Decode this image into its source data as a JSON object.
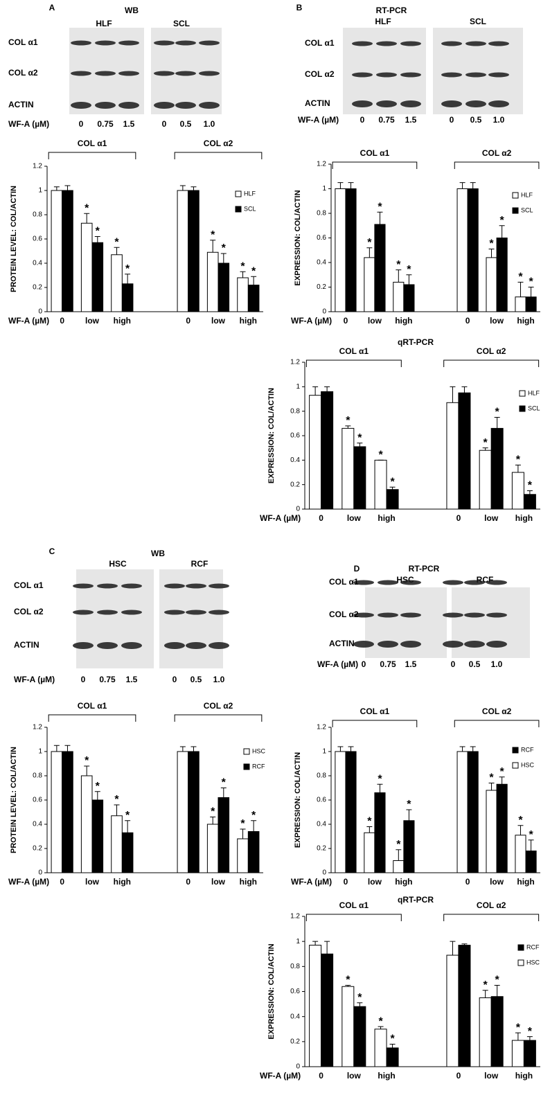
{
  "blots": [
    {
      "panel": "A",
      "method": "WB",
      "groups": [
        "HLF",
        "SCL"
      ],
      "rows": [
        "COL α1",
        "COL α2",
        "ACTIN"
      ],
      "dose_label": "WF-A (µM)",
      "lanes": [
        [
          "0",
          "0.75",
          "1.5"
        ],
        [
          "0",
          "0.5",
          "1.0"
        ]
      ]
    },
    {
      "panel": "B",
      "method": "RT-PCR",
      "groups": [
        "HLF",
        "SCL"
      ],
      "rows": [
        "COL α1",
        "COL α2",
        "ACTIN"
      ],
      "dose_label": "WF-A (µM)",
      "lanes": [
        [
          "0",
          "0.75",
          "1.5"
        ],
        [
          "0",
          "0.5",
          "1.0"
        ]
      ]
    },
    {
      "panel": "C",
      "method": "WB",
      "groups": [
        "HSC",
        "RCF"
      ],
      "rows": [
        "COL α1",
        "COL α2",
        "ACTIN"
      ],
      "dose_label": "WF-A (µM)",
      "lanes": [
        [
          "0",
          "0.75",
          "1.5"
        ],
        [
          "0",
          "0.5",
          "1.0"
        ]
      ]
    },
    {
      "panel": "D",
      "method": "RT-PCR",
      "groups": [
        "HSC",
        "RCF"
      ],
      "rows": [
        "COL α1",
        "COL α2",
        "ACTIN"
      ],
      "dose_label": "WF-A (µM)",
      "lanes": [
        [
          "0",
          "0.75",
          "1.5"
        ],
        [
          "0",
          "0.5",
          "1.0"
        ]
      ]
    }
  ],
  "chart_data": [
    {
      "type": "bar",
      "ylabel": "PROTEIN LEVEL: COL/ACTIN",
      "xlabel": "WF-A (µM)",
      "group_labels": [
        "COL α1",
        "COL α2"
      ],
      "categories": [
        "0",
        "low",
        "high",
        "0",
        "low",
        "high"
      ],
      "ylim": [
        0,
        1.2
      ],
      "yticks": [
        0,
        0.2,
        0.4,
        0.6,
        0.8,
        1,
        1.2
      ],
      "series": [
        {
          "name": "HLF",
          "color": "#ffffff",
          "values": [
            1.0,
            0.73,
            0.47,
            1.0,
            0.49,
            0.28
          ],
          "errors": [
            0.03,
            0.08,
            0.06,
            0.04,
            0.1,
            0.05
          ],
          "markers": [
            null,
            "*",
            "*",
            null,
            "*",
            "*"
          ]
        },
        {
          "name": "SCL",
          "color": "#000000",
          "values": [
            1.0,
            0.57,
            0.23,
            1.0,
            0.4,
            0.22
          ],
          "errors": [
            0.04,
            0.05,
            0.08,
            0.03,
            0.08,
            0.07
          ],
          "markers": [
            null,
            "*",
            "*",
            null,
            "*",
            "*"
          ]
        }
      ]
    },
    {
      "type": "bar",
      "ylabel": "EXPRESSION: COL/ACTIN",
      "xlabel": "WF-A (µM)",
      "group_labels": [
        "COL α1",
        "COL α2"
      ],
      "categories": [
        "0",
        "low",
        "high",
        "0",
        "low",
        "high"
      ],
      "ylim": [
        0,
        1.2
      ],
      "yticks": [
        0,
        0.2,
        0.4,
        0.6,
        0.8,
        1,
        1.2
      ],
      "series": [
        {
          "name": "HLF",
          "color": "#ffffff",
          "values": [
            1.0,
            0.44,
            0.24,
            1.0,
            0.44,
            0.12
          ],
          "errors": [
            0.05,
            0.08,
            0.1,
            0.05,
            0.07,
            0.12
          ],
          "markers": [
            null,
            "*",
            "*",
            null,
            "*",
            "*"
          ]
        },
        {
          "name": "SCL",
          "color": "#000000",
          "values": [
            1.0,
            0.71,
            0.22,
            1.0,
            0.6,
            0.12
          ],
          "errors": [
            0.05,
            0.1,
            0.08,
            0.05,
            0.1,
            0.08
          ],
          "markers": [
            null,
            "*",
            "*",
            null,
            "*",
            "*"
          ]
        }
      ]
    },
    {
      "type": "bar",
      "title": "qRT-PCR",
      "ylabel": "EXPRESSION: COL/ACTIN",
      "xlabel": "WF-A (µM)",
      "group_labels": [
        "COL α1",
        "COL α2"
      ],
      "categories": [
        "0",
        "low",
        "high",
        "0",
        "low",
        "high"
      ],
      "ylim": [
        0,
        1.2
      ],
      "yticks": [
        0,
        0.2,
        0.4,
        0.6,
        0.8,
        1,
        1.2
      ],
      "series": [
        {
          "name": "HLF",
          "color": "#ffffff",
          "values": [
            0.93,
            0.66,
            0.4,
            0.87,
            0.48,
            0.3
          ],
          "errors": [
            0.07,
            0.02,
            0,
            0.13,
            0.02,
            0.06
          ],
          "markers": [
            null,
            "*",
            "*",
            null,
            "*",
            "*"
          ]
        },
        {
          "name": "SCL",
          "color": "#000000",
          "values": [
            0.96,
            0.51,
            0.16,
            0.95,
            0.66,
            0.12
          ],
          "errors": [
            0.04,
            0.03,
            0.02,
            0.05,
            0.09,
            0.03
          ],
          "markers": [
            null,
            "*",
            "*",
            null,
            "*",
            "*"
          ]
        }
      ]
    },
    {
      "type": "bar",
      "ylabel": "PROTEIN LEVEL: COL/ACTIN",
      "xlabel": "WF-A (µM)",
      "group_labels": [
        "COL α1",
        "COL α2"
      ],
      "categories": [
        "0",
        "low",
        "high",
        "0",
        "low",
        "high"
      ],
      "ylim": [
        0,
        1.2
      ],
      "yticks": [
        0,
        0.2,
        0.4,
        0.6,
        0.8,
        1,
        1.2
      ],
      "series": [
        {
          "name": "HSC",
          "color": "#ffffff",
          "values": [
            1.0,
            0.8,
            0.47,
            1.0,
            0.4,
            0.28
          ],
          "errors": [
            0.05,
            0.08,
            0.09,
            0.04,
            0.06,
            0.08
          ],
          "markers": [
            null,
            "*",
            "*",
            null,
            "*",
            "*"
          ]
        },
        {
          "name": "RCF",
          "color": "#000000",
          "values": [
            1.0,
            0.6,
            0.33,
            1.0,
            0.62,
            0.34
          ],
          "errors": [
            0.05,
            0.07,
            0.1,
            0.04,
            0.08,
            0.09
          ],
          "markers": [
            null,
            "*",
            "*",
            null,
            "*",
            "*"
          ]
        }
      ]
    },
    {
      "type": "bar",
      "ylabel": "EXPRESSION: COL/ACTIN",
      "xlabel": "WF-A (µM)",
      "group_labels": [
        "COL α1",
        "COL α2"
      ],
      "categories": [
        "0",
        "low",
        "high",
        "0",
        "low",
        "high"
      ],
      "ylim": [
        0,
        1.2
      ],
      "yticks": [
        0,
        0.2,
        0.4,
        0.6,
        0.8,
        1,
        1.2
      ],
      "legend_reverse": true,
      "series": [
        {
          "name": "HSC",
          "color": "#ffffff",
          "values": [
            1.0,
            0.33,
            0.1,
            1.0,
            0.68,
            0.31
          ],
          "errors": [
            0.04,
            0.05,
            0.09,
            0.04,
            0.06,
            0.08
          ],
          "markers": [
            null,
            "*",
            "*",
            null,
            "*",
            "*"
          ]
        },
        {
          "name": "RCF",
          "color": "#000000",
          "values": [
            1.0,
            0.66,
            0.43,
            1.0,
            0.73,
            0.18
          ],
          "errors": [
            0.04,
            0.07,
            0.09,
            0.04,
            0.06,
            0.09
          ],
          "markers": [
            null,
            "*",
            "*",
            null,
            "*",
            "*"
          ]
        }
      ]
    },
    {
      "type": "bar",
      "title": "qRT-PCR",
      "ylabel": "EXPRESSION: COL/ACTIN",
      "xlabel": "WF-A (µM)",
      "group_labels": [
        "COL α1",
        "COL α2"
      ],
      "categories": [
        "0",
        "low",
        "high",
        "0",
        "low",
        "high"
      ],
      "ylim": [
        0,
        1.2
      ],
      "yticks": [
        0,
        0.2,
        0.4,
        0.6,
        0.8,
        1,
        1.2
      ],
      "legend_reverse": true,
      "series": [
        {
          "name": "HSC",
          "color": "#ffffff",
          "values": [
            0.97,
            0.64,
            0.3,
            0.89,
            0.55,
            0.21
          ],
          "errors": [
            0.03,
            0.01,
            0.02,
            0.11,
            0.06,
            0.06
          ],
          "markers": [
            null,
            "*",
            "*",
            null,
            "*",
            "*"
          ]
        },
        {
          "name": "RCF",
          "color": "#000000",
          "values": [
            0.9,
            0.48,
            0.15,
            0.97,
            0.56,
            0.21
          ],
          "errors": [
            0.1,
            0.03,
            0.03,
            0.01,
            0.09,
            0.03
          ],
          "markers": [
            null,
            "*",
            "*",
            null,
            "*",
            "*"
          ]
        }
      ]
    }
  ]
}
